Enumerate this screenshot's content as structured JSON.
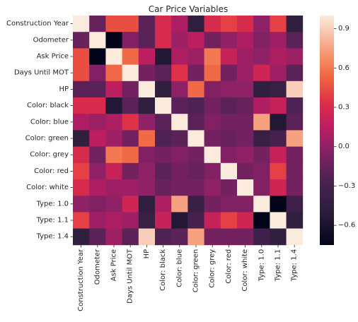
{
  "chart_data": {
    "type": "heatmap",
    "title": "Car Price Variables",
    "xlabel": "",
    "ylabel": "",
    "labels": [
      "Construction Year",
      "Odometer",
      "Ask Price",
      "Days Until MOT",
      "HP",
      "Color: black",
      "Color: blue",
      "Color: green",
      "Color: grey",
      "Color: red",
      "Color: white",
      "Type: 1.0",
      "Type: 1.1",
      "Type: 1.4"
    ],
    "matrix": [
      [
        1.0,
        -0.15,
        0.45,
        0.45,
        -0.2,
        0.3,
        0.1,
        -0.45,
        0.3,
        0.4,
        0.3,
        0.0,
        0.4,
        -0.45
      ],
      [
        -0.15,
        1.0,
        -0.75,
        -0.05,
        -0.2,
        0.3,
        0.05,
        0.15,
        -0.1,
        0.0,
        0.1,
        -0.05,
        0.05,
        -0.2
      ],
      [
        0.45,
        -0.75,
        1.0,
        0.55,
        0.15,
        -0.55,
        0.1,
        0.05,
        0.6,
        0.2,
        0.05,
        0.0,
        0.1,
        0.05
      ],
      [
        0.45,
        -0.05,
        0.55,
        1.0,
        -0.1,
        -0.2,
        0.35,
        -0.1,
        0.55,
        -0.1,
        0.05,
        0.25,
        0.05,
        -0.2
      ],
      [
        -0.2,
        -0.2,
        0.15,
        -0.1,
        1.0,
        -0.45,
        0.0,
        0.55,
        -0.05,
        0.0,
        0.0,
        -0.45,
        -0.4,
        0.9
      ],
      [
        0.3,
        0.3,
        -0.55,
        -0.2,
        -0.45,
        1.0,
        -0.2,
        -0.25,
        -0.1,
        -0.2,
        -0.15,
        0.1,
        0.2,
        -0.25
      ],
      [
        0.1,
        0.05,
        0.1,
        0.35,
        0.0,
        -0.2,
        1.0,
        -0.2,
        -0.05,
        -0.1,
        -0.1,
        0.75,
        -0.55,
        -0.2
      ],
      [
        -0.45,
        0.15,
        0.05,
        -0.1,
        0.55,
        -0.25,
        -0.2,
        1.0,
        -0.1,
        -0.15,
        -0.1,
        -0.4,
        -0.3,
        0.75
      ],
      [
        0.3,
        -0.1,
        0.6,
        0.55,
        -0.05,
        -0.1,
        -0.05,
        -0.1,
        1.0,
        -0.05,
        0.0,
        -0.1,
        0.2,
        -0.1
      ],
      [
        0.4,
        0.0,
        0.2,
        -0.1,
        0.0,
        -0.2,
        -0.1,
        -0.15,
        -0.05,
        1.0,
        -0.1,
        -0.05,
        0.4,
        -0.1
      ],
      [
        0.3,
        0.1,
        0.05,
        0.05,
        0.0,
        -0.15,
        -0.1,
        -0.1,
        0.0,
        -0.1,
        1.0,
        -0.05,
        0.25,
        -0.1
      ],
      [
        0.0,
        -0.05,
        0.0,
        0.25,
        -0.45,
        0.1,
        0.75,
        -0.4,
        -0.1,
        -0.05,
        -0.05,
        1.0,
        -0.75,
        -0.35
      ],
      [
        0.4,
        0.05,
        0.1,
        0.05,
        -0.4,
        0.2,
        -0.55,
        -0.3,
        0.2,
        0.4,
        0.25,
        -0.75,
        1.0,
        -0.45
      ],
      [
        -0.45,
        -0.2,
        0.05,
        -0.2,
        0.9,
        -0.25,
        -0.2,
        0.75,
        -0.1,
        -0.1,
        -0.1,
        -0.35,
        -0.45,
        1.0
      ]
    ],
    "color_range": [
      -0.75,
      1.0
    ],
    "colorbar": {
      "ticks": [
        0.9,
        0.6,
        0.3,
        0.0,
        -0.3,
        -0.6
      ],
      "tick_labels": [
        "0.9",
        "0.6",
        "0.3",
        "0.0",
        "−0.3",
        "−0.6"
      ]
    },
    "colormap": [
      [
        0.0,
        "#03051a"
      ],
      [
        0.15,
        "#2c1e3d"
      ],
      [
        0.28,
        "#4b2252"
      ],
      [
        0.42,
        "#8a2167"
      ],
      [
        0.52,
        "#bf1e5f"
      ],
      [
        0.62,
        "#dd2e4a"
      ],
      [
        0.72,
        "#f05f3f"
      ],
      [
        0.8,
        "#f5875d"
      ],
      [
        0.88,
        "#f7ad8f"
      ],
      [
        0.95,
        "#f8d2bf"
      ],
      [
        1.0,
        "#faebdd"
      ]
    ],
    "grid": false,
    "legend": "right-colorbar"
  }
}
